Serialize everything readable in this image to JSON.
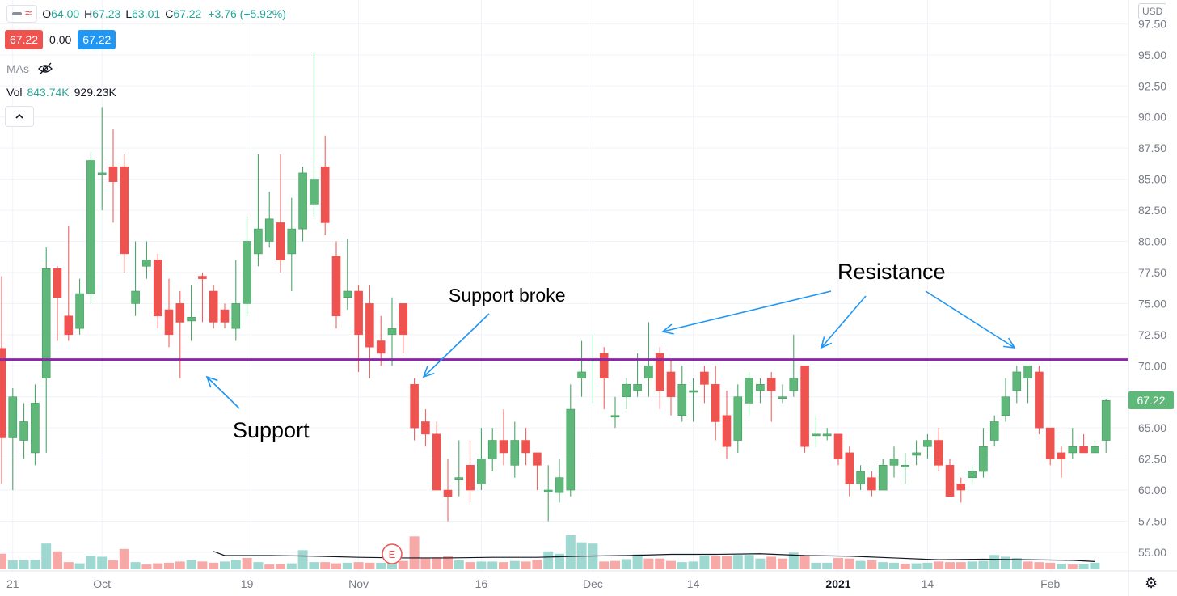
{
  "header": {
    "ohlc": [
      {
        "label": "O",
        "value": "64.00"
      },
      {
        "label": "H",
        "value": "67.23"
      },
      {
        "label": "L",
        "value": "63.01"
      },
      {
        "label": "C",
        "value": "67.22"
      }
    ],
    "change": "+3.76 (+5.92%)",
    "sell_price": "67.22",
    "spread": "0.00",
    "buy_price": "67.22",
    "mas_label": "MAs",
    "vol_label": "Vol",
    "vol_value_1": "843.74K",
    "vol_value_2": "929.23K",
    "currency": "USD"
  },
  "colors": {
    "up": "#26a69a",
    "up_body": "#5fb87a",
    "down": "#ef5350",
    "support_resistance_line": "#8e24aa",
    "annotation_arrow": "#2196f3"
  },
  "chart_data": {
    "type": "candlestick",
    "y_axis": {
      "ticks": [
        "97.50",
        "95.00",
        "92.50",
        "90.00",
        "87.50",
        "85.00",
        "82.50",
        "80.00",
        "77.50",
        "75.00",
        "72.50",
        "70.00",
        "67.50",
        "65.00",
        "62.50",
        "60.00",
        "57.50",
        "55.00"
      ],
      "range": [
        53.5,
        98.5
      ],
      "position": "right"
    },
    "x_axis": {
      "ticks": [
        {
          "label": "21",
          "bar": 1
        },
        {
          "label": "Oct",
          "bar": 9
        },
        {
          "label": "19",
          "bar": 22
        },
        {
          "label": "Nov",
          "bar": 32
        },
        {
          "label": "16",
          "bar": 43
        },
        {
          "label": "Dec",
          "bar": 53
        },
        {
          "label": "14",
          "bar": 62
        },
        {
          "label": "2021",
          "bar": 75
        },
        {
          "label": "14",
          "bar": 83
        },
        {
          "label": "Feb",
          "bar": 94
        }
      ]
    },
    "last_price_label": "67.22",
    "horizontal_line": {
      "value": 70.5
    },
    "candles": [
      [
        71.4,
        64.2,
        77.2,
        60.5
      ],
      [
        64.2,
        67.5,
        68.2,
        60.0
      ],
      [
        64.0,
        65.5,
        67.0,
        62.5
      ],
      [
        63.0,
        67.0,
        68.5,
        62.0
      ],
      [
        69.0,
        77.8,
        79.5,
        63.0
      ],
      [
        77.8,
        75.5,
        78.0,
        72.0
      ],
      [
        74.0,
        72.5,
        81.2,
        72.0
      ],
      [
        73.0,
        75.8,
        77.0,
        72.5
      ],
      [
        75.8,
        86.5,
        87.2,
        75.0
      ],
      [
        85.5,
        85.5,
        90.8,
        82.5
      ],
      [
        86.0,
        84.8,
        89.0,
        81.5
      ],
      [
        86.0,
        79.0,
        87.0,
        77.5
      ],
      [
        75.0,
        76.0,
        80.0,
        74.0
      ],
      [
        78.0,
        78.5,
        80.0,
        77.0
      ],
      [
        78.5,
        74.0,
        79.0,
        73.0
      ],
      [
        74.5,
        72.5,
        77.0,
        71.5
      ],
      [
        75.0,
        73.5,
        76.0,
        69.0
      ],
      [
        73.6,
        73.9,
        76.5,
        72.0
      ],
      [
        77.2,
        77.0,
        77.5,
        73.5
      ],
      [
        76.0,
        73.5,
        76.5,
        73.0
      ],
      [
        74.5,
        73.5,
        75.0,
        73.0
      ],
      [
        73.0,
        75.0,
        78.5,
        72.0
      ],
      [
        75.0,
        80.0,
        82.0,
        74.0
      ],
      [
        79.0,
        81.0,
        87.0,
        78.0
      ],
      [
        80.0,
        81.8,
        84.0,
        79.5
      ],
      [
        81.5,
        78.5,
        87.0,
        77.5
      ],
      [
        79.0,
        81.0,
        83.5,
        76.0
      ],
      [
        81.0,
        85.5,
        86.0,
        80.0
      ],
      [
        83.0,
        85.0,
        95.2,
        82.0
      ],
      [
        86.0,
        81.5,
        88.5,
        80.5
      ],
      [
        78.8,
        74.0,
        80.0,
        73.0
      ],
      [
        75.5,
        76.0,
        80.2,
        74.5
      ],
      [
        76.0,
        72.5,
        76.5,
        69.5
      ],
      [
        75.0,
        71.5,
        76.5,
        69.0
      ],
      [
        72.0,
        71.0,
        74.0,
        70.0
      ],
      [
        72.5,
        73.0,
        75.5,
        70.0
      ],
      [
        75.0,
        72.5,
        75.0,
        71.0
      ],
      [
        68.5,
        65.0,
        69.0,
        64.0
      ],
      [
        65.5,
        64.5,
        66.5,
        63.5
      ],
      [
        64.5,
        60.0,
        65.5,
        60.0
      ],
      [
        60.0,
        59.5,
        62.5,
        57.5
      ],
      [
        61.0,
        61.0,
        64.0,
        59.5
      ],
      [
        62.0,
        60.0,
        64.0,
        59.0
      ],
      [
        60.5,
        62.5,
        65.0,
        60.0
      ],
      [
        62.5,
        64.0,
        65.0,
        61.5
      ],
      [
        64.0,
        63.0,
        66.5,
        62.0
      ],
      [
        62.0,
        64.0,
        65.5,
        61.0
      ],
      [
        64.0,
        63.0,
        65.0,
        62.0
      ],
      [
        63.0,
        62.0,
        63.0,
        60.0
      ],
      [
        60.0,
        60.0,
        62.0,
        57.5
      ],
      [
        59.8,
        61.0,
        62.5,
        59.0
      ],
      [
        60.0,
        66.5,
        68.5,
        59.5
      ],
      [
        69.0,
        69.5,
        72.0,
        67.5
      ],
      [
        70.5,
        70.5,
        72.5,
        67.0
      ],
      [
        71.0,
        69.0,
        71.5,
        66.5
      ],
      [
        66.0,
        66.0,
        67.5,
        65.0
      ],
      [
        67.5,
        68.5,
        69.0,
        66.5
      ],
      [
        68.0,
        68.5,
        71.0,
        67.5
      ],
      [
        69.0,
        70.0,
        73.5,
        67.5
      ],
      [
        71.0,
        68.0,
        71.5,
        66.5
      ],
      [
        69.5,
        67.5,
        70.5,
        66.0
      ],
      [
        66.0,
        68.5,
        70.0,
        65.5
      ],
      [
        68.0,
        68.0,
        69.0,
        65.5
      ],
      [
        69.5,
        68.5,
        70.0,
        67.0
      ],
      [
        68.5,
        65.5,
        70.0,
        64.0
      ],
      [
        66.0,
        63.5,
        68.0,
        62.5
      ],
      [
        64.0,
        67.5,
        68.5,
        63.0
      ],
      [
        67.0,
        69.0,
        69.5,
        66.0
      ],
      [
        68.0,
        68.5,
        69.0,
        67.0
      ],
      [
        69.0,
        68.0,
        69.5,
        65.5
      ],
      [
        67.5,
        67.5,
        68.5,
        67.0
      ],
      [
        68.0,
        69.0,
        72.5,
        67.5
      ],
      [
        70.0,
        63.5,
        70.0,
        63.0
      ],
      [
        64.5,
        64.5,
        66.0,
        63.5
      ],
      [
        64.5,
        64.5,
        65.0,
        64.0
      ],
      [
        64.5,
        62.5,
        64.5,
        62.0
      ],
      [
        63.0,
        60.5,
        63.5,
        59.5
      ],
      [
        60.5,
        61.5,
        62.0,
        60.0
      ],
      [
        61.0,
        60.0,
        61.5,
        59.5
      ],
      [
        60.0,
        62.0,
        62.5,
        60.0
      ],
      [
        62.0,
        62.5,
        63.5,
        61.0
      ],
      [
        62.0,
        62.0,
        63.0,
        60.5
      ],
      [
        62.8,
        63.0,
        64.0,
        62.0
      ],
      [
        63.5,
        64.0,
        64.5,
        62.5
      ],
      [
        64.0,
        62.0,
        65.0,
        61.5
      ],
      [
        62.0,
        59.5,
        62.5,
        59.5
      ],
      [
        60.5,
        60.0,
        61.0,
        59.0
      ],
      [
        61.0,
        61.5,
        62.0,
        60.5
      ],
      [
        61.5,
        63.5,
        65.0,
        61.0
      ],
      [
        64.0,
        65.5,
        66.0,
        63.5
      ],
      [
        66.0,
        67.5,
        69.0,
        65.5
      ],
      [
        68.0,
        69.5,
        70.0,
        67.0
      ],
      [
        69.0,
        70.0,
        70.0,
        67.0
      ],
      [
        69.5,
        65.0,
        70.0,
        64.5
      ],
      [
        65.0,
        62.5,
        65.0,
        62.0
      ],
      [
        63.0,
        62.5,
        63.5,
        61.0
      ],
      [
        63.0,
        63.5,
        65.0,
        62.5
      ],
      [
        63.5,
        63.0,
        64.5,
        63.0
      ],
      [
        63.0,
        63.5,
        64.0,
        63.0
      ],
      [
        64.0,
        67.2,
        67.3,
        63.0
      ]
    ],
    "volume_range": [
      0,
      100
    ],
    "volumes": [
      [
        26,
        "d"
      ],
      [
        15,
        "u"
      ],
      [
        15,
        "u"
      ],
      [
        16,
        "u"
      ],
      [
        43,
        "u"
      ],
      [
        30,
        "d"
      ],
      [
        12,
        "d"
      ],
      [
        10,
        "u"
      ],
      [
        23,
        "u"
      ],
      [
        21,
        "u"
      ],
      [
        15,
        "d"
      ],
      [
        34,
        "d"
      ],
      [
        12,
        "u"
      ],
      [
        8,
        "d"
      ],
      [
        10,
        "d"
      ],
      [
        11,
        "d"
      ],
      [
        13,
        "d"
      ],
      [
        15,
        "u"
      ],
      [
        13,
        "d"
      ],
      [
        11,
        "d"
      ],
      [
        13,
        "u"
      ],
      [
        16,
        "u"
      ],
      [
        19,
        "d"
      ],
      [
        12,
        "u"
      ],
      [
        8,
        "d"
      ],
      [
        9,
        "d"
      ],
      [
        10,
        "u"
      ],
      [
        32,
        "u"
      ],
      [
        12,
        "u"
      ],
      [
        12,
        "d"
      ],
      [
        10,
        "d"
      ],
      [
        11,
        "u"
      ],
      [
        12,
        "d"
      ],
      [
        11,
        "d"
      ],
      [
        11,
        "u"
      ],
      [
        11,
        "u"
      ],
      [
        14,
        "d"
      ],
      [
        55,
        "d"
      ],
      [
        19,
        "d"
      ],
      [
        20,
        "d"
      ],
      [
        22,
        "d"
      ],
      [
        15,
        "u"
      ],
      [
        12,
        "d"
      ],
      [
        13,
        "u"
      ],
      [
        13,
        "u"
      ],
      [
        12,
        "d"
      ],
      [
        14,
        "u"
      ],
      [
        13,
        "d"
      ],
      [
        16,
        "d"
      ],
      [
        30,
        "u"
      ],
      [
        26,
        "u"
      ],
      [
        57,
        "u"
      ],
      [
        45,
        "u"
      ],
      [
        43,
        "u"
      ],
      [
        13,
        "d"
      ],
      [
        14,
        "d"
      ],
      [
        17,
        "u"
      ],
      [
        25,
        "u"
      ],
      [
        18,
        "d"
      ],
      [
        18,
        "d"
      ],
      [
        14,
        "d"
      ],
      [
        12,
        "u"
      ],
      [
        13,
        "u"
      ],
      [
        23,
        "u"
      ],
      [
        22,
        "d"
      ],
      [
        22,
        "d"
      ],
      [
        24,
        "u"
      ],
      [
        24,
        "u"
      ],
      [
        18,
        "u"
      ],
      [
        21,
        "d"
      ],
      [
        18,
        "d"
      ],
      [
        28,
        "u"
      ],
      [
        24,
        "d"
      ],
      [
        11,
        "u"
      ],
      [
        11,
        "u"
      ],
      [
        19,
        "d"
      ],
      [
        18,
        "d"
      ],
      [
        14,
        "u"
      ],
      [
        15,
        "d"
      ],
      [
        12,
        "u"
      ],
      [
        11,
        "u"
      ],
      [
        9,
        "d"
      ],
      [
        10,
        "u"
      ],
      [
        11,
        "u"
      ],
      [
        13,
        "d"
      ],
      [
        12,
        "d"
      ],
      [
        12,
        "d"
      ],
      [
        13,
        "u"
      ],
      [
        14,
        "u"
      ],
      [
        24,
        "u"
      ],
      [
        21,
        "u"
      ],
      [
        19,
        "u"
      ],
      [
        13,
        "d"
      ],
      [
        12,
        "d"
      ],
      [
        11,
        "d"
      ],
      [
        9,
        "u"
      ],
      [
        8,
        "d"
      ],
      [
        9,
        "u"
      ],
      [
        11,
        "u"
      ]
    ],
    "volume_ma": [
      [
        19,
        30
      ],
      [
        20,
        23
      ],
      [
        24,
        23
      ],
      [
        28,
        22
      ],
      [
        32,
        20
      ],
      [
        36,
        19
      ],
      [
        40,
        19
      ],
      [
        44,
        20
      ],
      [
        48,
        20
      ],
      [
        52,
        22
      ],
      [
        56,
        23
      ],
      [
        60,
        25
      ],
      [
        64,
        25
      ],
      [
        68,
        26
      ],
      [
        72,
        23
      ],
      [
        76,
        22
      ],
      [
        80,
        19
      ],
      [
        84,
        16
      ],
      [
        88,
        17
      ],
      [
        92,
        16
      ],
      [
        96,
        15
      ],
      [
        98,
        13
      ]
    ],
    "earnings_marker": {
      "label": "E",
      "bar": 35
    },
    "annotations": [
      {
        "text": "Support"
      },
      {
        "text": "Support broke"
      },
      {
        "text": "Resistance"
      }
    ]
  }
}
